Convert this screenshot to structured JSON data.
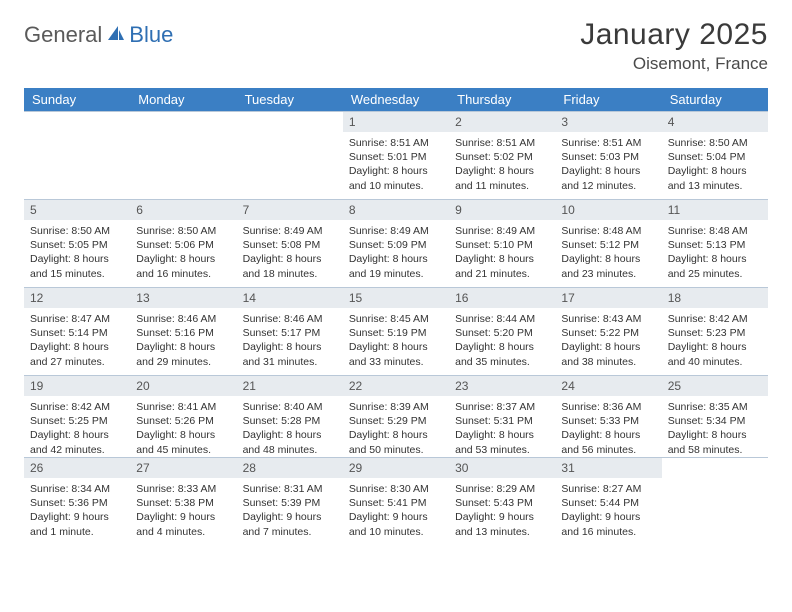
{
  "brand": {
    "part1": "General",
    "part2": "Blue"
  },
  "colors": {
    "header_bg": "#3b7fc4",
    "header_text": "#ffffff",
    "daynum_bg": "#e7ebef",
    "border": "#b9c8d8",
    "logo_gray": "#5a5a5a",
    "logo_blue": "#2f6fb3"
  },
  "title": "January 2025",
  "location": "Oisemont, France",
  "day_headers": [
    "Sunday",
    "Monday",
    "Tuesday",
    "Wednesday",
    "Thursday",
    "Friday",
    "Saturday"
  ],
  "weeks": [
    [
      {
        "n": "",
        "lines": []
      },
      {
        "n": "",
        "lines": []
      },
      {
        "n": "",
        "lines": []
      },
      {
        "n": "1",
        "lines": [
          "Sunrise: 8:51 AM",
          "Sunset: 5:01 PM",
          "Daylight: 8 hours",
          "and 10 minutes."
        ]
      },
      {
        "n": "2",
        "lines": [
          "Sunrise: 8:51 AM",
          "Sunset: 5:02 PM",
          "Daylight: 8 hours",
          "and 11 minutes."
        ]
      },
      {
        "n": "3",
        "lines": [
          "Sunrise: 8:51 AM",
          "Sunset: 5:03 PM",
          "Daylight: 8 hours",
          "and 12 minutes."
        ]
      },
      {
        "n": "4",
        "lines": [
          "Sunrise: 8:50 AM",
          "Sunset: 5:04 PM",
          "Daylight: 8 hours",
          "and 13 minutes."
        ]
      }
    ],
    [
      {
        "n": "5",
        "lines": [
          "Sunrise: 8:50 AM",
          "Sunset: 5:05 PM",
          "Daylight: 8 hours",
          "and 15 minutes."
        ]
      },
      {
        "n": "6",
        "lines": [
          "Sunrise: 8:50 AM",
          "Sunset: 5:06 PM",
          "Daylight: 8 hours",
          "and 16 minutes."
        ]
      },
      {
        "n": "7",
        "lines": [
          "Sunrise: 8:49 AM",
          "Sunset: 5:08 PM",
          "Daylight: 8 hours",
          "and 18 minutes."
        ]
      },
      {
        "n": "8",
        "lines": [
          "Sunrise: 8:49 AM",
          "Sunset: 5:09 PM",
          "Daylight: 8 hours",
          "and 19 minutes."
        ]
      },
      {
        "n": "9",
        "lines": [
          "Sunrise: 8:49 AM",
          "Sunset: 5:10 PM",
          "Daylight: 8 hours",
          "and 21 minutes."
        ]
      },
      {
        "n": "10",
        "lines": [
          "Sunrise: 8:48 AM",
          "Sunset: 5:12 PM",
          "Daylight: 8 hours",
          "and 23 minutes."
        ]
      },
      {
        "n": "11",
        "lines": [
          "Sunrise: 8:48 AM",
          "Sunset: 5:13 PM",
          "Daylight: 8 hours",
          "and 25 minutes."
        ]
      }
    ],
    [
      {
        "n": "12",
        "lines": [
          "Sunrise: 8:47 AM",
          "Sunset: 5:14 PM",
          "Daylight: 8 hours",
          "and 27 minutes."
        ]
      },
      {
        "n": "13",
        "lines": [
          "Sunrise: 8:46 AM",
          "Sunset: 5:16 PM",
          "Daylight: 8 hours",
          "and 29 minutes."
        ]
      },
      {
        "n": "14",
        "lines": [
          "Sunrise: 8:46 AM",
          "Sunset: 5:17 PM",
          "Daylight: 8 hours",
          "and 31 minutes."
        ]
      },
      {
        "n": "15",
        "lines": [
          "Sunrise: 8:45 AM",
          "Sunset: 5:19 PM",
          "Daylight: 8 hours",
          "and 33 minutes."
        ]
      },
      {
        "n": "16",
        "lines": [
          "Sunrise: 8:44 AM",
          "Sunset: 5:20 PM",
          "Daylight: 8 hours",
          "and 35 minutes."
        ]
      },
      {
        "n": "17",
        "lines": [
          "Sunrise: 8:43 AM",
          "Sunset: 5:22 PM",
          "Daylight: 8 hours",
          "and 38 minutes."
        ]
      },
      {
        "n": "18",
        "lines": [
          "Sunrise: 8:42 AM",
          "Sunset: 5:23 PM",
          "Daylight: 8 hours",
          "and 40 minutes."
        ]
      }
    ],
    [
      {
        "n": "19",
        "lines": [
          "Sunrise: 8:42 AM",
          "Sunset: 5:25 PM",
          "Daylight: 8 hours",
          "and 42 minutes."
        ]
      },
      {
        "n": "20",
        "lines": [
          "Sunrise: 8:41 AM",
          "Sunset: 5:26 PM",
          "Daylight: 8 hours",
          "and 45 minutes."
        ]
      },
      {
        "n": "21",
        "lines": [
          "Sunrise: 8:40 AM",
          "Sunset: 5:28 PM",
          "Daylight: 8 hours",
          "and 48 minutes."
        ]
      },
      {
        "n": "22",
        "lines": [
          "Sunrise: 8:39 AM",
          "Sunset: 5:29 PM",
          "Daylight: 8 hours",
          "and 50 minutes."
        ]
      },
      {
        "n": "23",
        "lines": [
          "Sunrise: 8:37 AM",
          "Sunset: 5:31 PM",
          "Daylight: 8 hours",
          "and 53 minutes."
        ]
      },
      {
        "n": "24",
        "lines": [
          "Sunrise: 8:36 AM",
          "Sunset: 5:33 PM",
          "Daylight: 8 hours",
          "and 56 minutes."
        ]
      },
      {
        "n": "25",
        "lines": [
          "Sunrise: 8:35 AM",
          "Sunset: 5:34 PM",
          "Daylight: 8 hours",
          "and 58 minutes."
        ]
      }
    ],
    [
      {
        "n": "26",
        "lines": [
          "Sunrise: 8:34 AM",
          "Sunset: 5:36 PM",
          "Daylight: 9 hours",
          "and 1 minute."
        ]
      },
      {
        "n": "27",
        "lines": [
          "Sunrise: 8:33 AM",
          "Sunset: 5:38 PM",
          "Daylight: 9 hours",
          "and 4 minutes."
        ]
      },
      {
        "n": "28",
        "lines": [
          "Sunrise: 8:31 AM",
          "Sunset: 5:39 PM",
          "Daylight: 9 hours",
          "and 7 minutes."
        ]
      },
      {
        "n": "29",
        "lines": [
          "Sunrise: 8:30 AM",
          "Sunset: 5:41 PM",
          "Daylight: 9 hours",
          "and 10 minutes."
        ]
      },
      {
        "n": "30",
        "lines": [
          "Sunrise: 8:29 AM",
          "Sunset: 5:43 PM",
          "Daylight: 9 hours",
          "and 13 minutes."
        ]
      },
      {
        "n": "31",
        "lines": [
          "Sunrise: 8:27 AM",
          "Sunset: 5:44 PM",
          "Daylight: 9 hours",
          "and 16 minutes."
        ]
      },
      {
        "n": "",
        "lines": []
      }
    ]
  ]
}
